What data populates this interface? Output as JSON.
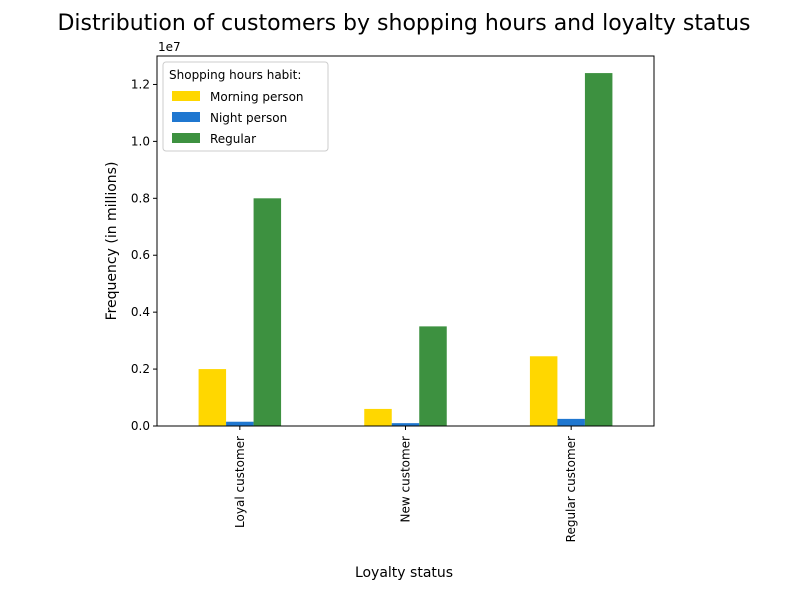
{
  "chart_data": {
    "type": "bar",
    "title": "Distribution of customers by shopping hours and loyalty status",
    "xlabel": "Loyalty status",
    "ylabel": "Frequency (in millions)",
    "y_offset_label": "1e7",
    "ylim": [
      0,
      13000000
    ],
    "y_ticks": [
      0,
      2000000,
      4000000,
      6000000,
      8000000,
      10000000,
      12000000
    ],
    "y_tick_labels": [
      "0.0",
      "0.2",
      "0.4",
      "0.6",
      "0.8",
      "1.0",
      "1.2"
    ],
    "categories": [
      "Loyal customer",
      "New customer",
      "Regular customer"
    ],
    "legend": {
      "title": "Shopping hours habit:",
      "placement": "top-left"
    },
    "grid": false,
    "series": [
      {
        "name": "Morning person",
        "color": "#FFD700",
        "values": [
          2000000,
          600000,
          2450000
        ]
      },
      {
        "name": "Night person",
        "color": "#1F77D0",
        "values": [
          150000,
          100000,
          250000
        ]
      },
      {
        "name": "Regular",
        "color": "#3D9140",
        "values": [
          8000000,
          3500000,
          12400000
        ]
      }
    ]
  }
}
